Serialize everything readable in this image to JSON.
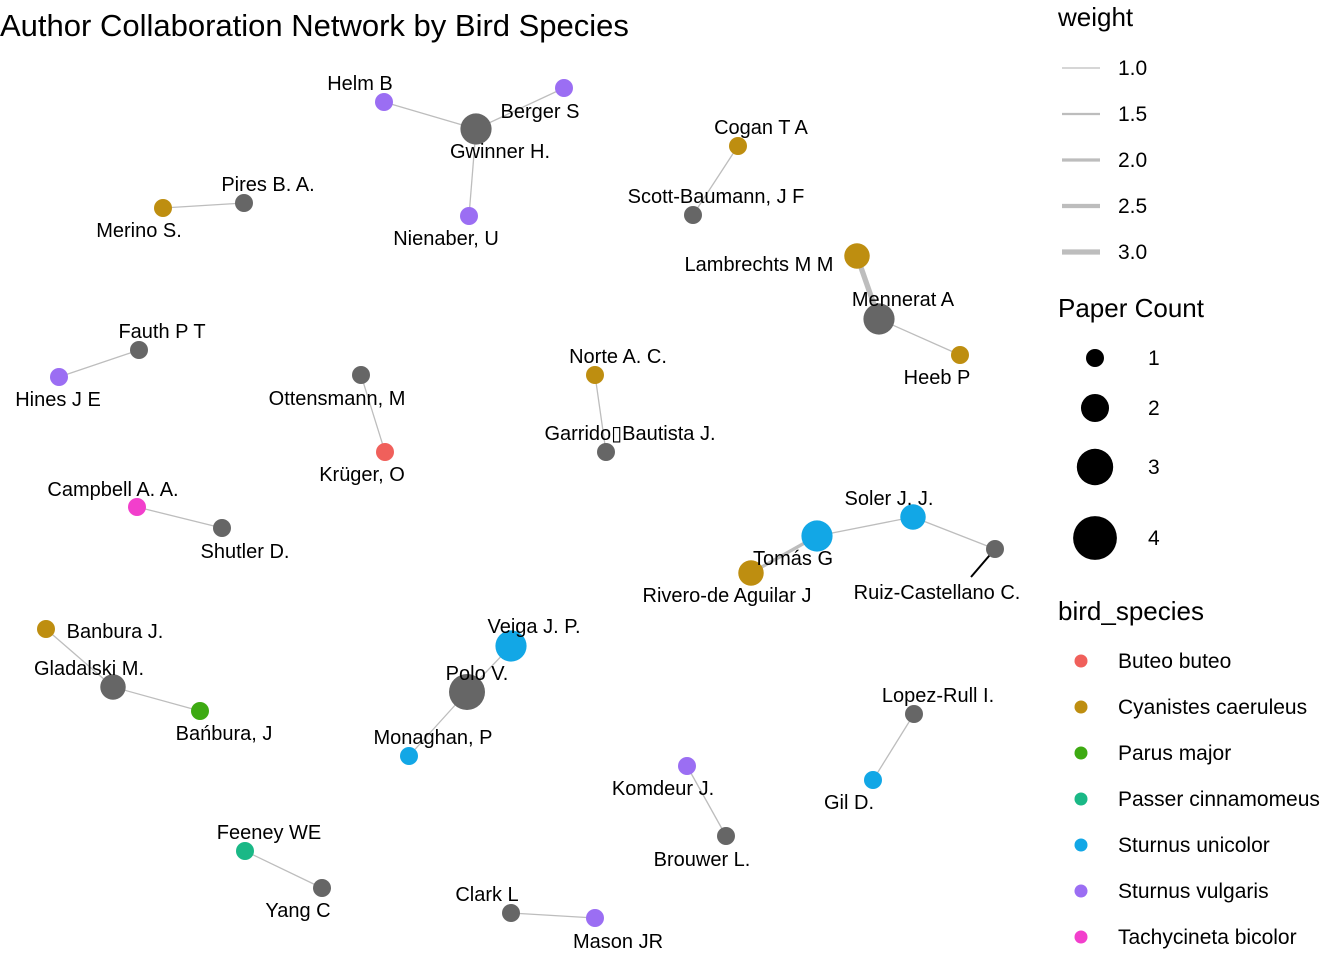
{
  "title": "Author Collaboration Network by Bird Species",
  "colors": {
    "edge": "#bdbdbd",
    "no_species": "#666666",
    "Buteo buteo": "#F0605B",
    "Cyanistes caeruleus": "#BE8E10",
    "Parus major": "#3DAA12",
    "Passer cinnamomeus": "#1AB886",
    "Sturnus unicolor": "#12A7E6",
    "Sturnus vulgaris": "#9B6EF3",
    "Tachycineta bicolor": "#F23FCC"
  },
  "legend": {
    "weight": {
      "title": "weight",
      "entries": [
        "1.0",
        "1.5",
        "2.0",
        "2.5",
        "3.0"
      ]
    },
    "paper_count": {
      "title": "Paper Count",
      "entries": [
        "1",
        "2",
        "3",
        "4"
      ]
    },
    "bird_species": {
      "title": "bird_species",
      "entries": [
        "Buteo buteo",
        "Cyanistes caeruleus",
        "Parus major",
        "Passer cinnamomeus",
        "Sturnus unicolor",
        "Sturnus vulgaris",
        "Tachycineta bicolor"
      ]
    }
  },
  "chart_data": {
    "type": "network",
    "nodes": [
      {
        "id": "Helm B",
        "species": "Sturnus vulgaris",
        "papers": 1
      },
      {
        "id": "Berger S",
        "species": "Sturnus vulgaris",
        "papers": 1
      },
      {
        "id": "Gwinner H.",
        "species": null,
        "papers": 3
      },
      {
        "id": "Nienaber, U",
        "species": "Sturnus vulgaris",
        "papers": 1
      },
      {
        "id": "Pires B. A.",
        "species": null,
        "papers": 1
      },
      {
        "id": "Merino S.",
        "species": "Cyanistes caeruleus",
        "papers": 1
      },
      {
        "id": "Cogan T A",
        "species": "Cyanistes caeruleus",
        "papers": 1
      },
      {
        "id": "Scott-Baumann, J F",
        "species": null,
        "papers": 1
      },
      {
        "id": "Lambrechts M M",
        "species": "Cyanistes caeruleus",
        "papers": 2
      },
      {
        "id": "Mennerat A",
        "species": null,
        "papers": 3
      },
      {
        "id": "Heeb P",
        "species": "Cyanistes caeruleus",
        "papers": 1
      },
      {
        "id": "Fauth P T",
        "species": null,
        "papers": 1
      },
      {
        "id": "Hines J E",
        "species": "Sturnus vulgaris",
        "papers": 1
      },
      {
        "id": "Ottensmann, M",
        "species": null,
        "papers": 1
      },
      {
        "id": "Krüger, O",
        "species": "Buteo buteo",
        "papers": 1
      },
      {
        "id": "Norte A. C.",
        "species": "Cyanistes caeruleus",
        "papers": 1
      },
      {
        "id": "Garrido▯Bautista J.",
        "species": null,
        "papers": 1
      },
      {
        "id": "Campbell A. A.",
        "species": "Tachycineta bicolor",
        "papers": 1
      },
      {
        "id": "Shutler D.",
        "species": null,
        "papers": 1
      },
      {
        "id": "Soler J. J.",
        "species": "Sturnus unicolor",
        "papers": 2
      },
      {
        "id": "Tomás G",
        "species": "Sturnus unicolor",
        "papers": 3
      },
      {
        "id": "Rivero-de Aguilar J",
        "species": "Cyanistes caeruleus",
        "papers": 2
      },
      {
        "id": "Ruiz-Castellano C.",
        "species": null,
        "papers": 1
      },
      {
        "id": "Banbura J.",
        "species": "Cyanistes caeruleus",
        "papers": 1
      },
      {
        "id": "Gladalski M.",
        "species": null,
        "papers": 2
      },
      {
        "id": "Bańbura, J",
        "species": "Parus major",
        "papers": 1
      },
      {
        "id": "Veiga J. P.",
        "species": "Sturnus unicolor",
        "papers": 3
      },
      {
        "id": "Polo V.",
        "species": null,
        "papers": 4
      },
      {
        "id": "Monaghan, P",
        "species": "Sturnus unicolor",
        "papers": 1
      },
      {
        "id": "Lopez-Rull I.",
        "species": null,
        "papers": 1
      },
      {
        "id": "Gil D.",
        "species": "Sturnus unicolor",
        "papers": 1
      },
      {
        "id": "Komdeur J.",
        "species": "Sturnus vulgaris",
        "papers": 1
      },
      {
        "id": "Brouwer L.",
        "species": null,
        "papers": 1
      },
      {
        "id": "Feeney WE",
        "species": "Passer cinnamomeus",
        "papers": 1
      },
      {
        "id": "Yang C",
        "species": null,
        "papers": 1
      },
      {
        "id": "Clark L",
        "species": null,
        "papers": 1
      },
      {
        "id": "Mason JR",
        "species": "Sturnus vulgaris",
        "papers": 1
      }
    ],
    "edges": [
      {
        "source": "Helm B",
        "target": "Gwinner H.",
        "weight": 1
      },
      {
        "source": "Berger S",
        "target": "Gwinner H.",
        "weight": 1
      },
      {
        "source": "Nienaber, U",
        "target": "Gwinner H.",
        "weight": 1
      },
      {
        "source": "Merino S.",
        "target": "Pires B. A.",
        "weight": 1
      },
      {
        "source": "Cogan T A",
        "target": "Scott-Baumann, J F",
        "weight": 1
      },
      {
        "source": "Lambrechts M M",
        "target": "Mennerat A",
        "weight": 3
      },
      {
        "source": "Mennerat A",
        "target": "Heeb P",
        "weight": 1
      },
      {
        "source": "Hines J E",
        "target": "Fauth P T",
        "weight": 1
      },
      {
        "source": "Ottensmann, M",
        "target": "Krüger, O",
        "weight": 1
      },
      {
        "source": "Norte A. C.",
        "target": "Garrido▯Bautista J.",
        "weight": 1
      },
      {
        "source": "Campbell A. A.",
        "target": "Shutler D.",
        "weight": 1
      },
      {
        "source": "Rivero-de Aguilar J",
        "target": "Tomás G",
        "weight": 2
      },
      {
        "source": "Tomás G",
        "target": "Soler J. J.",
        "weight": 1
      },
      {
        "source": "Soler J. J.",
        "target": "Ruiz-Castellano C.",
        "weight": 1
      },
      {
        "source": "Banbura J.",
        "target": "Gladalski M.",
        "weight": 1
      },
      {
        "source": "Gladalski M.",
        "target": "Bańbura, J",
        "weight": 1
      },
      {
        "source": "Veiga J. P.",
        "target": "Polo V.",
        "weight": 1
      },
      {
        "source": "Polo V.",
        "target": "Monaghan, P",
        "weight": 1
      },
      {
        "source": "Lopez-Rull I.",
        "target": "Gil D.",
        "weight": 1
      },
      {
        "source": "Komdeur J.",
        "target": "Brouwer L.",
        "weight": 1
      },
      {
        "source": "Feeney WE",
        "target": "Yang C",
        "weight": 1
      },
      {
        "source": "Clark L",
        "target": "Mason JR",
        "weight": 1
      }
    ]
  }
}
